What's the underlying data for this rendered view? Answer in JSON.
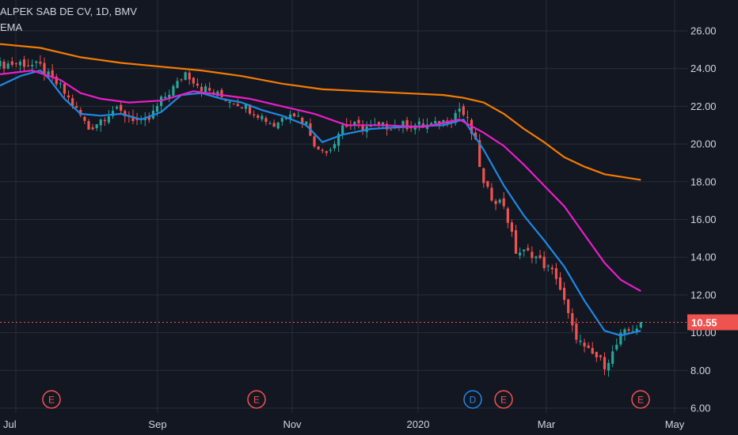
{
  "header": {
    "title": "ALPEK SAB DE CV, 1D, BMV",
    "indicator": "EMA"
  },
  "colors": {
    "background": "#131722",
    "grid": "#2a2e39",
    "up": "#26a69a",
    "down": "#ef5350",
    "ema_fast": "#1e88e5",
    "ema_mid": "#e91ec8",
    "ema_slow": "#f57c00",
    "axis_text": "#d1d4dc",
    "price_tag": "#ef5350"
  },
  "chart_data": {
    "type": "candlestick",
    "y_axis": {
      "min": 6,
      "max": 26,
      "ticks": [
        "6.00",
        "8.00",
        "10.00",
        "12.00",
        "14.00",
        "16.00",
        "18.00",
        "20.00",
        "22.00",
        "24.00",
        "26.00"
      ],
      "side": "right"
    },
    "x_axis": {
      "ticks": [
        "Jul",
        "Sep",
        "Nov",
        "2020",
        "Mar",
        "May"
      ]
    },
    "current_price": "10.55",
    "series": [
      {
        "kind": "close",
        "points": [
          [
            0,
            24.2
          ],
          [
            5,
            24.3
          ],
          [
            10,
            24.1
          ],
          [
            12,
            23.6
          ],
          [
            15,
            23.0
          ],
          [
            20,
            21.5
          ],
          [
            22,
            20.8
          ],
          [
            25,
            21.3
          ],
          [
            28,
            21.8
          ],
          [
            32,
            21.5
          ],
          [
            35,
            21.1
          ],
          [
            37,
            21.3
          ],
          [
            40,
            22.3
          ],
          [
            44,
            23.2
          ],
          [
            46,
            23.8
          ],
          [
            50,
            23.0
          ],
          [
            55,
            22.5
          ],
          [
            60,
            22.1
          ],
          [
            64,
            21.6
          ],
          [
            68,
            21.0
          ],
          [
            72,
            21.8
          ],
          [
            76,
            21.1
          ],
          [
            79,
            19.6
          ],
          [
            82,
            19.8
          ],
          [
            85,
            21.0
          ],
          [
            92,
            20.9
          ],
          [
            100,
            21.0
          ],
          [
            108,
            21.0
          ],
          [
            112,
            21.4
          ],
          [
            114,
            21.9
          ],
          [
            116,
            21.2
          ],
          [
            118,
            20.0
          ],
          [
            120,
            17.8
          ],
          [
            122,
            17.2
          ],
          [
            125,
            16.8
          ],
          [
            128,
            14.3
          ],
          [
            132,
            14.2
          ],
          [
            135,
            13.6
          ],
          [
            138,
            13.0
          ],
          [
            140,
            11.6
          ],
          [
            142,
            10.2
          ],
          [
            145,
            9.1
          ],
          [
            148,
            8.7
          ],
          [
            150,
            8.3
          ],
          [
            152,
            8.9
          ],
          [
            154,
            9.8
          ],
          [
            156,
            10.1
          ],
          [
            158,
            10.3
          ],
          [
            159,
            10.55
          ]
        ]
      },
      {
        "name": "EMA",
        "kind": "ema",
        "color": "ema_fast",
        "points": [
          [
            0,
            23.1
          ],
          [
            5,
            23.6
          ],
          [
            10,
            23.9
          ],
          [
            12,
            23.5
          ],
          [
            16,
            22.4
          ],
          [
            20,
            21.6
          ],
          [
            25,
            21.5
          ],
          [
            30,
            21.6
          ],
          [
            35,
            21.3
          ],
          [
            40,
            21.7
          ],
          [
            45,
            22.6
          ],
          [
            50,
            22.7
          ],
          [
            55,
            22.4
          ],
          [
            60,
            22.2
          ],
          [
            65,
            21.8
          ],
          [
            70,
            21.5
          ],
          [
            76,
            21.0
          ],
          [
            80,
            20.1
          ],
          [
            85,
            20.5
          ],
          [
            92,
            20.8
          ],
          [
            100,
            20.9
          ],
          [
            110,
            21.0
          ],
          [
            115,
            21.3
          ],
          [
            120,
            19.7
          ],
          [
            125,
            17.8
          ],
          [
            130,
            16.2
          ],
          [
            135,
            14.9
          ],
          [
            140,
            13.5
          ],
          [
            145,
            11.7
          ],
          [
            150,
            10.1
          ],
          [
            154,
            9.85
          ],
          [
            159,
            10.1
          ]
        ]
      },
      {
        "name": "EMA",
        "kind": "ema",
        "color": "ema_mid",
        "points": [
          [
            0,
            23.7
          ],
          [
            8,
            23.9
          ],
          [
            15,
            23.4
          ],
          [
            20,
            22.7
          ],
          [
            25,
            22.4
          ],
          [
            32,
            22.2
          ],
          [
            40,
            22.3
          ],
          [
            48,
            22.8
          ],
          [
            55,
            22.6
          ],
          [
            62,
            22.4
          ],
          [
            70,
            22.0
          ],
          [
            78,
            21.6
          ],
          [
            86,
            21.0
          ],
          [
            95,
            21.0
          ],
          [
            105,
            20.9
          ],
          [
            114,
            21.3
          ],
          [
            120,
            20.6
          ],
          [
            125,
            19.9
          ],
          [
            130,
            18.9
          ],
          [
            135,
            17.8
          ],
          [
            140,
            16.7
          ],
          [
            145,
            15.2
          ],
          [
            150,
            13.7
          ],
          [
            154,
            12.8
          ],
          [
            159,
            12.2
          ]
        ]
      },
      {
        "name": "EMA",
        "kind": "ema",
        "color": "ema_slow",
        "points": [
          [
            0,
            25.3
          ],
          [
            10,
            25.1
          ],
          [
            20,
            24.6
          ],
          [
            30,
            24.3
          ],
          [
            40,
            24.1
          ],
          [
            50,
            23.9
          ],
          [
            60,
            23.6
          ],
          [
            70,
            23.2
          ],
          [
            80,
            22.9
          ],
          [
            90,
            22.8
          ],
          [
            100,
            22.7
          ],
          [
            110,
            22.6
          ],
          [
            115,
            22.45
          ],
          [
            120,
            22.2
          ],
          [
            125,
            21.6
          ],
          [
            130,
            20.8
          ],
          [
            135,
            20.1
          ],
          [
            140,
            19.3
          ],
          [
            145,
            18.8
          ],
          [
            150,
            18.4
          ],
          [
            159,
            18.1
          ]
        ]
      }
    ],
    "markers": [
      {
        "label": "E",
        "type": "earnings",
        "color": "down"
      },
      {
        "label": "E",
        "type": "earnings",
        "color": "down"
      },
      {
        "label": "D",
        "type": "dividend",
        "color": "ema_fast"
      },
      {
        "label": "E",
        "type": "earnings",
        "color": "down"
      },
      {
        "label": "E",
        "type": "earnings",
        "color": "down"
      }
    ]
  }
}
